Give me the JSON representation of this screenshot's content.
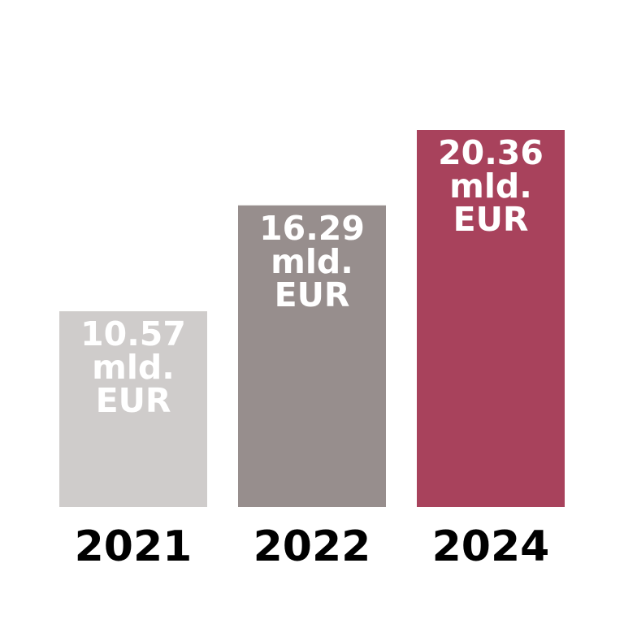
{
  "chart_data": {
    "type": "bar",
    "categories": [
      "2021",
      "2022",
      "2024"
    ],
    "values": [
      10.57,
      16.29,
      20.36
    ],
    "unit": "mld. EUR",
    "data_labels": [
      [
        "10.57",
        "mld.",
        "EUR"
      ],
      [
        "16.29",
        "mld.",
        "EUR"
      ],
      [
        "20.36",
        "mld.",
        "EUR"
      ]
    ],
    "colors": [
      "#cfcccb",
      "#978e8d",
      "#a8425c"
    ],
    "data_label_color": "#ffffff",
    "ylim": [
      0,
      21
    ],
    "grid": false,
    "legend": "none",
    "title": "",
    "xlabel": "",
    "ylabel": ""
  }
}
